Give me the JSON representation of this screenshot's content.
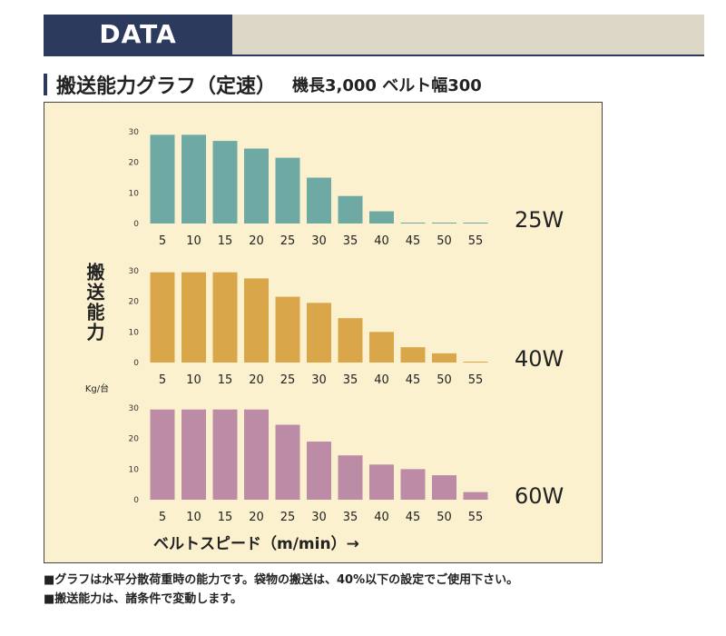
{
  "header": {
    "title": "DATA"
  },
  "subtitle": {
    "main": "搬送能力グラフ（定速）",
    "spec": "機長3,000 ベルト幅300"
  },
  "axis": {
    "ylabel": "搬送能力",
    "yunit": "Kg/台",
    "xlabel": "ベルトスピード（m/min）→"
  },
  "notes": [
    "■グラフは水平分散荷重時の能力です。袋物の搬送は、40%以下の設定でご使用下さい。",
    "■搬送能力は、諸条件で変動します。"
  ],
  "chart_data": [
    {
      "type": "bar",
      "label": "25W",
      "color": "#6fa9a3",
      "categories": [
        "5",
        "10",
        "15",
        "20",
        "25",
        "30",
        "35",
        "40",
        "45",
        "50",
        "55"
      ],
      "values": [
        29,
        29,
        27,
        24.5,
        21.5,
        15,
        9,
        4,
        0.3,
        0.3,
        0.3
      ],
      "yticks": [
        0,
        10,
        20,
        30
      ],
      "ylim": [
        0,
        30
      ]
    },
    {
      "type": "bar",
      "label": "40W",
      "color": "#d9a64a",
      "categories": [
        "5",
        "10",
        "15",
        "20",
        "25",
        "30",
        "35",
        "40",
        "45",
        "50",
        "55"
      ],
      "values": [
        29.5,
        29.5,
        29.5,
        27.5,
        21.5,
        19.5,
        14.5,
        10,
        5,
        3,
        0.3
      ],
      "yticks": [
        0,
        10,
        20,
        30
      ],
      "ylim": [
        0,
        30
      ]
    },
    {
      "type": "bar",
      "label": "60W",
      "color": "#bc8ca6",
      "categories": [
        "5",
        "10",
        "15",
        "20",
        "25",
        "30",
        "35",
        "40",
        "45",
        "50",
        "55"
      ],
      "values": [
        29.5,
        29.5,
        29.5,
        29.5,
        24.5,
        19,
        14.5,
        11.5,
        10,
        8,
        2.5
      ],
      "yticks": [
        0,
        10,
        20,
        30
      ],
      "ylim": [
        0,
        30
      ]
    }
  ]
}
